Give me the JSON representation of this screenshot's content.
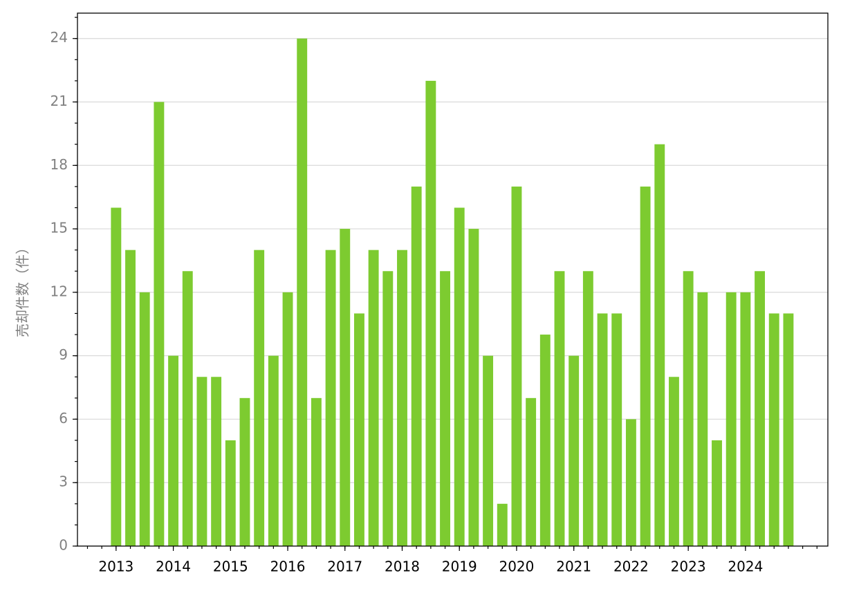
{
  "chart_data": {
    "type": "bar",
    "y_label": "売却件数（件）",
    "categories": [
      "2013",
      null,
      null,
      null,
      "2014",
      null,
      null,
      null,
      "2015",
      null,
      null,
      null,
      "2016",
      null,
      null,
      null,
      "2017",
      null,
      null,
      null,
      "2018",
      null,
      null,
      null,
      "2019",
      null,
      null,
      null,
      "2020",
      null,
      null,
      null,
      "2021",
      null,
      null,
      null,
      "2022",
      null,
      null,
      null,
      "2023",
      null,
      null,
      null,
      "2024",
      null,
      null,
      null
    ],
    "values": [
      16,
      14,
      12,
      21,
      9,
      13,
      8,
      8,
      5,
      7,
      14,
      9,
      12,
      24,
      7,
      14,
      15,
      11,
      14,
      13,
      14,
      17,
      22,
      13,
      16,
      15,
      9,
      2,
      17,
      7,
      10,
      13,
      9,
      13,
      11,
      11,
      6,
      17,
      19,
      8,
      13,
      12,
      5,
      12,
      12,
      13,
      11,
      11
    ],
    "color": "#7dcb30",
    "ylim": [
      0,
      25.2
    ],
    "yticks": [
      0,
      3,
      6,
      9,
      12,
      15,
      18,
      21,
      24
    ],
    "grid": true
  }
}
